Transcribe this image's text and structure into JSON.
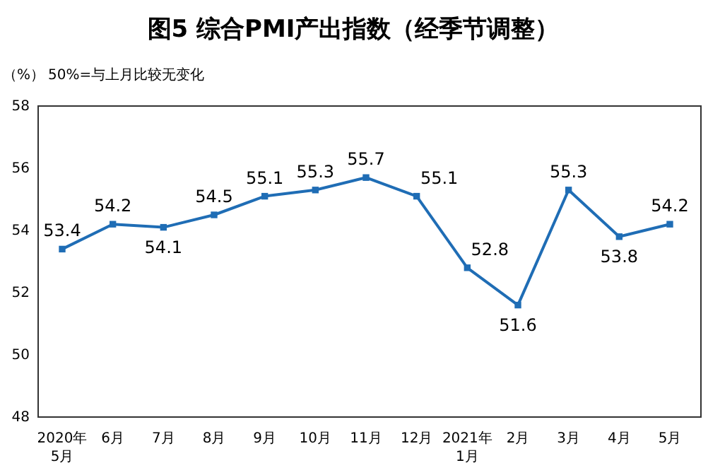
{
  "chart_data": {
    "type": "line",
    "title": "图5 综合PMI产出指数（经季节调整）",
    "ylabel": "（%）",
    "annotations": [
      "50%=与上月比较无变化"
    ],
    "categories": [
      "2020年\n5月",
      "6月",
      "7月",
      "8月",
      "9月",
      "10月",
      "11月",
      "12月",
      "2021年\n1月",
      "2月",
      "3月",
      "4月",
      "5月"
    ],
    "series": [
      {
        "color": "#1f6db5",
        "values": [
          53.4,
          54.2,
          54.1,
          54.5,
          55.1,
          55.3,
          55.7,
          55.1,
          52.8,
          51.6,
          55.3,
          53.8,
          54.2
        ]
      }
    ],
    "ylim": [
      48,
      58
    ],
    "yticks": [
      48,
      50,
      52,
      54,
      56,
      58
    ],
    "data_labels": true,
    "marker": "square",
    "grid": false
  }
}
